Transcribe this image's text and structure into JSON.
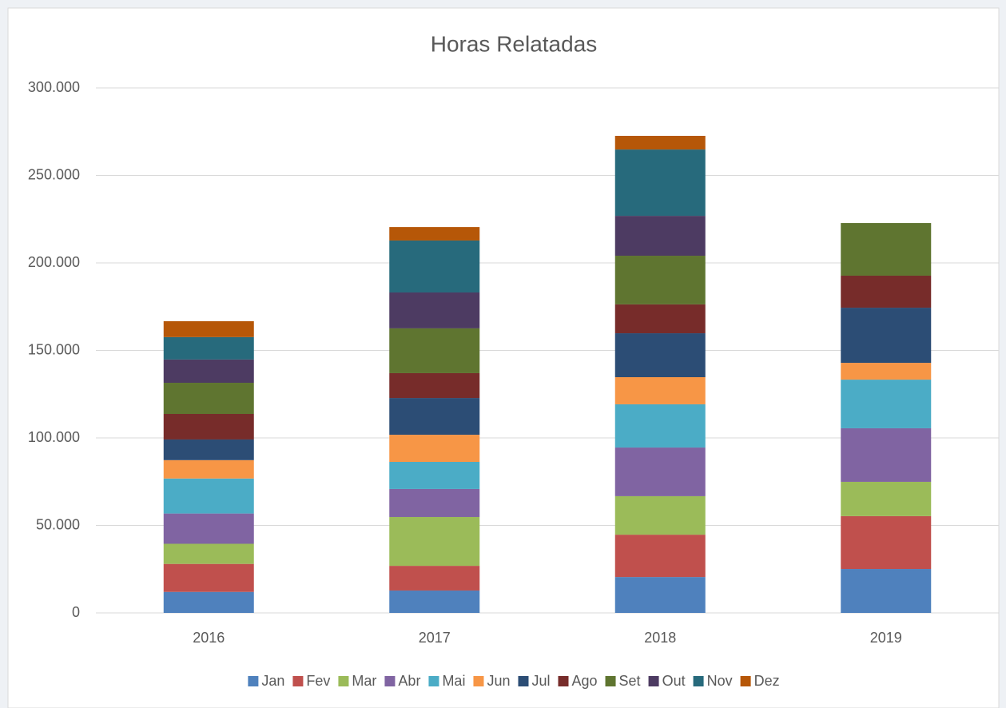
{
  "chart_data": {
    "type": "stacked_bar",
    "title": "Horas Relatadas",
    "categories": [
      "2016",
      "2017",
      "2018",
      "2019"
    ],
    "series": [
      {
        "name": "Jan",
        "color": "#4f81bd",
        "values": [
          12000,
          12800,
          20500,
          25100
        ]
      },
      {
        "name": "Fev",
        "color": "#c0504d",
        "values": [
          16000,
          14100,
          24200,
          30200
        ]
      },
      {
        "name": "Mar",
        "color": "#9bbb59",
        "values": [
          11500,
          27900,
          22000,
          19600
        ]
      },
      {
        "name": "Abr",
        "color": "#8064a2",
        "values": [
          17300,
          16000,
          27800,
          30600
        ]
      },
      {
        "name": "Mai",
        "color": "#4bacc6",
        "values": [
          20000,
          15500,
          24700,
          27800
        ]
      },
      {
        "name": "Jun",
        "color": "#f79646",
        "values": [
          10500,
          15500,
          15500,
          9600
        ]
      },
      {
        "name": "Jul",
        "color": "#2c4d75",
        "values": [
          11800,
          21000,
          25100,
          31500
        ]
      },
      {
        "name": "Ago",
        "color": "#772c2a",
        "values": [
          14600,
          14200,
          16500,
          18300
        ]
      },
      {
        "name": "Set",
        "color": "#5f7530",
        "values": [
          17800,
          25600,
          27800,
          30100
        ]
      },
      {
        "name": "Out",
        "color": "#4d3b62",
        "values": [
          13300,
          20500,
          22800,
          null
        ]
      },
      {
        "name": "Nov",
        "color": "#276a7c",
        "values": [
          12800,
          29700,
          37900,
          null
        ]
      },
      {
        "name": "Dez",
        "color": "#b65708",
        "values": [
          9100,
          7700,
          7800,
          null
        ]
      }
    ],
    "ylim": [
      0,
      300000
    ],
    "yticks": [
      0,
      {
        "value": 50000,
        "label": "50.000"
      },
      {
        "value": 100000,
        "label": "100.000"
      },
      {
        "value": 150000,
        "label": "150.000"
      },
      {
        "value": 200000,
        "label": "200.000"
      },
      {
        "value": 250000,
        "label": "250.000"
      },
      {
        "value": 300000,
        "label": "300.000"
      }
    ],
    "grid": true,
    "legend": "bottom"
  }
}
